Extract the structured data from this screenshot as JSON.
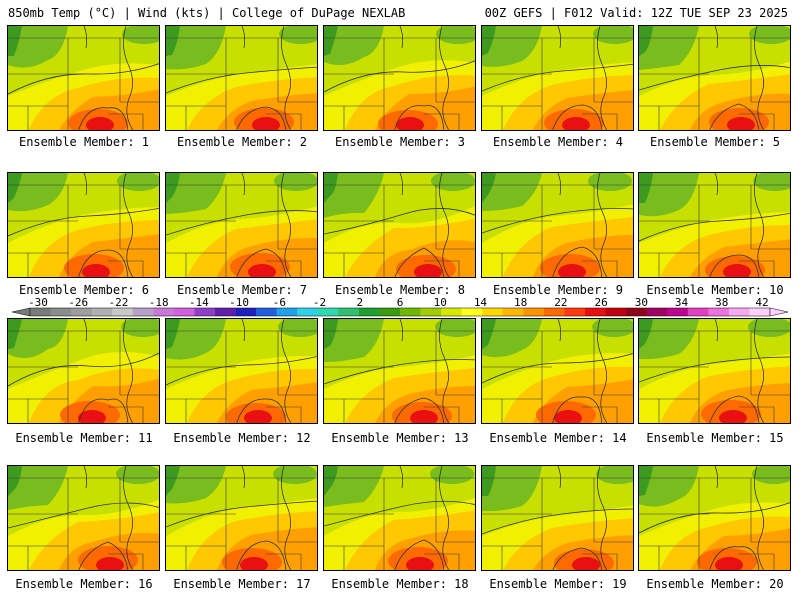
{
  "header": {
    "left": "850mb Temp (°C) | Wind (kts) | College of DuPage NEXLAB",
    "right": "00Z GEFS | F012 Valid: 12Z TUE SEP 23 2025"
  },
  "panel_caption_prefix": "Ensemble Member: ",
  "members": [
    1,
    2,
    3,
    4,
    5,
    6,
    7,
    8,
    9,
    10,
    11,
    12,
    13,
    14,
    15,
    16,
    17,
    18,
    19,
    20
  ],
  "colorbar": {
    "tick_labels": [
      "-30",
      "-26",
      "-22",
      "-18",
      "-14",
      "-10",
      "-6",
      "-2",
      "2",
      "6",
      "10",
      "14",
      "18",
      "22",
      "26",
      "30",
      "34",
      "38",
      "42"
    ],
    "colors": [
      "#7a7a7a",
      "#8c8c8c",
      "#9e9e9e",
      "#b0b0b0",
      "#c8c8c8",
      "#b8a0c8",
      "#c878d8",
      "#d060e0",
      "#9040c8",
      "#6020a8",
      "#2020c0",
      "#2060e0",
      "#20a0e8",
      "#30d0e8",
      "#30d8b0",
      "#30c070",
      "#20a030",
      "#3a9a10",
      "#70b800",
      "#a0cc00",
      "#d8e800",
      "#ffff20",
      "#ffd800",
      "#ffb800",
      "#ff9400",
      "#ff6a00",
      "#ff3a10",
      "#e81010",
      "#c00010",
      "#900018",
      "#a00060",
      "#c00090",
      "#e040c0",
      "#f070e0",
      "#f8a8f0",
      "#ffd0ff"
    ],
    "field_colors": {
      "dark_green": "#3c9a1e",
      "green": "#78bc1e",
      "yellow_green": "#c8e000",
      "yellow": "#f0f000",
      "light_orange": "#ffc800",
      "orange": "#ffa000",
      "red_orange": "#ff6a00",
      "red": "#e81010"
    }
  }
}
